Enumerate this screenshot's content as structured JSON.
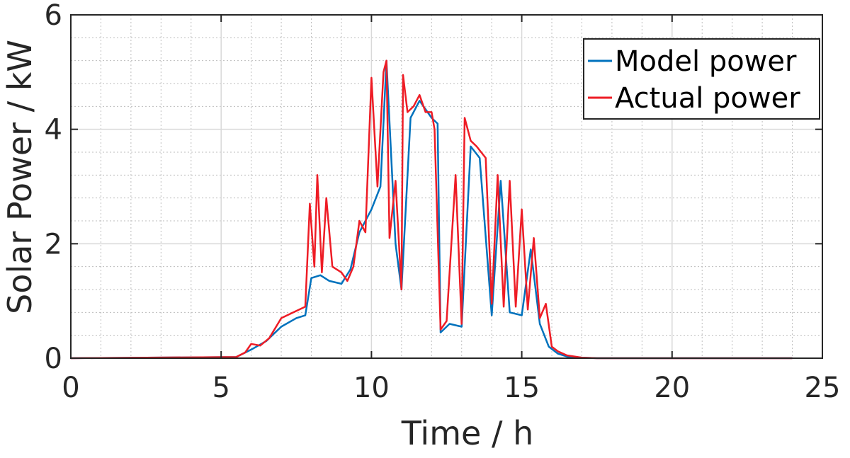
{
  "chart_data": {
    "type": "line",
    "title": "",
    "xlabel": "Time / h",
    "ylabel": "Solar Power / kW",
    "xlim": [
      0,
      25
    ],
    "ylim": [
      0,
      6
    ],
    "xticks": [
      0,
      5,
      10,
      15,
      20,
      25
    ],
    "xtick_labels": [
      "0",
      "5",
      "10",
      "15",
      "20",
      "25"
    ],
    "yticks": [
      0,
      2,
      4,
      6
    ],
    "ytick_labels": [
      "0",
      "2",
      "4",
      "6"
    ],
    "grid": true,
    "minor_grid": true,
    "legend_position": "top-right",
    "series": [
      {
        "name": "Model power",
        "color": "#0072BD",
        "x": [
          0,
          5.5,
          6.0,
          6.5,
          7.0,
          7.5,
          7.8,
          8.0,
          8.3,
          8.6,
          9.0,
          9.3,
          9.6,
          10.0,
          10.3,
          10.5,
          10.8,
          11.0,
          11.3,
          11.6,
          12.0,
          12.2,
          12.3,
          12.6,
          13.0,
          13.3,
          13.6,
          14.0,
          14.3,
          14.6,
          15.0,
          15.3,
          15.6,
          15.9,
          16.2,
          16.5,
          17.0,
          17.5,
          24
        ],
        "y": [
          0,
          0.02,
          0.15,
          0.3,
          0.55,
          0.7,
          0.75,
          1.4,
          1.45,
          1.35,
          1.3,
          1.55,
          2.2,
          2.6,
          3.0,
          5.2,
          2.0,
          1.2,
          4.2,
          4.5,
          4.2,
          4.1,
          0.45,
          0.6,
          0.55,
          3.7,
          3.5,
          0.75,
          3.1,
          0.8,
          0.75,
          1.9,
          0.6,
          0.2,
          0.08,
          0.03,
          0.01,
          0,
          0
        ]
      },
      {
        "name": "Actual power",
        "color": "#EE1C25",
        "x": [
          0,
          5.5,
          5.8,
          6.0,
          6.3,
          6.6,
          7.0,
          7.4,
          7.8,
          7.95,
          8.1,
          8.2,
          8.35,
          8.5,
          8.7,
          9.0,
          9.2,
          9.4,
          9.6,
          9.8,
          10.0,
          10.2,
          10.4,
          10.5,
          10.6,
          10.8,
          11.0,
          11.05,
          11.2,
          11.4,
          11.6,
          11.8,
          12.0,
          12.1,
          12.3,
          12.5,
          12.8,
          13.0,
          13.1,
          13.3,
          13.5,
          13.8,
          14.0,
          14.2,
          14.4,
          14.6,
          14.8,
          15.0,
          15.2,
          15.4,
          15.6,
          15.8,
          16.0,
          16.2,
          16.5,
          17.0,
          17.5,
          24
        ],
        "y": [
          0,
          0.02,
          0.1,
          0.25,
          0.22,
          0.35,
          0.7,
          0.8,
          0.9,
          2.7,
          1.6,
          3.2,
          1.5,
          2.8,
          1.6,
          1.5,
          1.35,
          1.6,
          2.4,
          2.2,
          4.9,
          3.0,
          5.0,
          5.2,
          2.1,
          3.1,
          1.2,
          4.95,
          4.3,
          4.4,
          4.6,
          4.3,
          4.3,
          4.0,
          0.5,
          0.65,
          3.2,
          0.6,
          4.2,
          3.8,
          3.7,
          3.5,
          0.95,
          3.2,
          0.9,
          3.1,
          0.9,
          2.6,
          0.85,
          2.1,
          0.7,
          0.95,
          0.2,
          0.12,
          0.05,
          0.01,
          0,
          0
        ]
      }
    ]
  }
}
